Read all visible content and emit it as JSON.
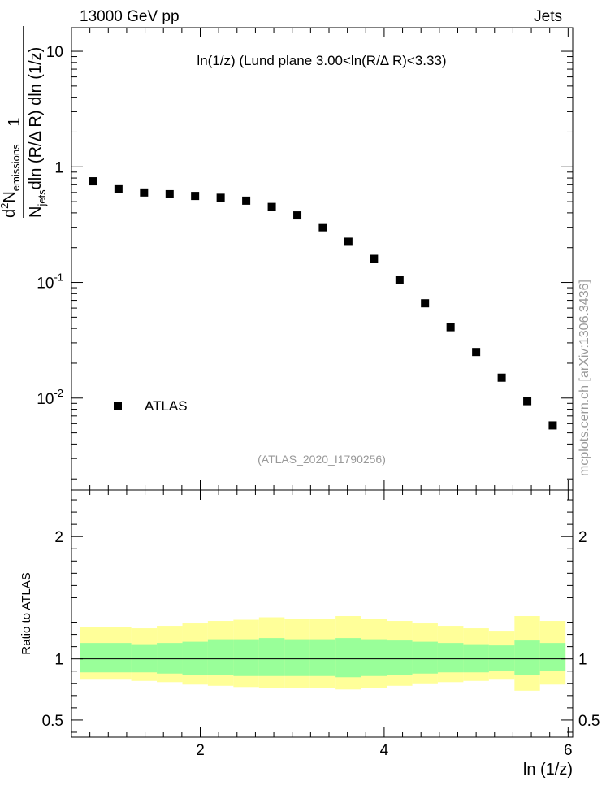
{
  "header": {
    "energy_label": "13000 GeV pp",
    "process_label": "Jets",
    "plot_title": "ln(1/z) (Lund plane 3.00<ln(R/Δ R)<3.33)",
    "analysis_id": "(ATLAS_2020_I1790256)",
    "watermark": "mcplots.cern.ch [arXiv:1306.3436]"
  },
  "chart_data": [
    {
      "type": "scatter",
      "panel": "main",
      "y_scale": "log",
      "ylabel": "1/N_jets d²N_emissions / dln(R/Δ R) dln(1/z)",
      "ylabel_parts": {
        "numerator_prefix": "d",
        "numerator_power": "2",
        "numerator_var": "N",
        "numerator_sub": "emissions",
        "denom_var": "N",
        "denom_sub": "jets",
        "denom_rest": "dln (R/Δ R) dln (1/z)",
        "one": "1"
      },
      "xlim": [
        0.6,
        6.05
      ],
      "ylim": [
        0.0016,
        16
      ],
      "y_ticks": [
        {
          "base": "10",
          "exp": "-2",
          "value": 0.01
        },
        {
          "base": "10",
          "exp": "-1",
          "value": 0.1
        },
        {
          "base": "1",
          "exp": "",
          "value": 1
        },
        {
          "base": "10",
          "exp": "",
          "value": 10
        }
      ],
      "legend": {
        "position": "lower-left",
        "entries": [
          "ATLAS"
        ]
      },
      "series": [
        {
          "name": "ATLAS",
          "marker": "square",
          "color": "#000000",
          "x": [
            0.833,
            1.111,
            1.389,
            1.667,
            1.944,
            2.222,
            2.5,
            2.778,
            3.056,
            3.333,
            3.611,
            3.889,
            4.167,
            4.444,
            4.722,
            5.0,
            5.278,
            5.556,
            5.833
          ],
          "y": [
            0.75,
            0.64,
            0.6,
            0.58,
            0.56,
            0.54,
            0.51,
            0.45,
            0.38,
            0.3,
            0.225,
            0.16,
            0.105,
            0.066,
            0.041,
            0.025,
            0.015,
            0.0094,
            0.0058
          ]
        }
      ]
    },
    {
      "type": "area",
      "panel": "ratio",
      "ylabel": "Ratio to ATLAS",
      "xlabel": "ln (1/z)",
      "xlim": [
        0.6,
        6.05
      ],
      "ylim": [
        0.36,
        2.38
      ],
      "x_ticks": [
        2,
        4,
        6
      ],
      "y_ticks": [
        0.5,
        1,
        2
      ],
      "reference_line": 1,
      "bin_edges": [
        0.694,
        0.972,
        1.25,
        1.528,
        1.806,
        2.083,
        2.361,
        2.639,
        2.917,
        3.194,
        3.472,
        3.75,
        4.028,
        4.306,
        4.583,
        4.861,
        5.139,
        5.417,
        5.694,
        5.972
      ],
      "band_inner": {
        "color": "#99ff99",
        "lower": [
          0.89,
          0.89,
          0.89,
          0.88,
          0.87,
          0.87,
          0.86,
          0.86,
          0.86,
          0.86,
          0.85,
          0.86,
          0.87,
          0.88,
          0.89,
          0.89,
          0.9,
          0.87,
          0.9
        ],
        "upper": [
          1.13,
          1.13,
          1.12,
          1.13,
          1.14,
          1.16,
          1.16,
          1.17,
          1.16,
          1.16,
          1.17,
          1.16,
          1.15,
          1.14,
          1.13,
          1.12,
          1.11,
          1.15,
          1.13
        ]
      },
      "band_outer": {
        "color": "#ffff99",
        "lower": [
          0.83,
          0.83,
          0.82,
          0.81,
          0.79,
          0.78,
          0.77,
          0.76,
          0.76,
          0.76,
          0.75,
          0.76,
          0.78,
          0.8,
          0.81,
          0.82,
          0.83,
          0.74,
          0.79
        ],
        "upper": [
          1.26,
          1.26,
          1.25,
          1.27,
          1.29,
          1.31,
          1.32,
          1.34,
          1.33,
          1.33,
          1.35,
          1.33,
          1.31,
          1.29,
          1.27,
          1.25,
          1.23,
          1.35,
          1.31
        ]
      }
    }
  ]
}
